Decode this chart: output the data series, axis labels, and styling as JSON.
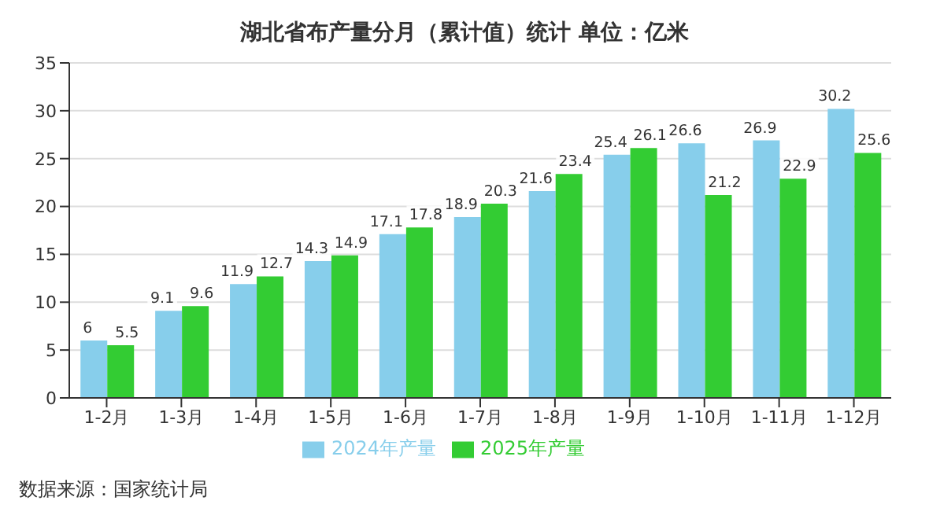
{
  "chart_data": {
    "type": "bar",
    "title": "湖北省布产量分月（累计值）统计 单位：亿米",
    "categories": [
      "1-2月",
      "1-3月",
      "1-4月",
      "1-5月",
      "1-6月",
      "1-7月",
      "1-8月",
      "1-9月",
      "1-10月",
      "1-11月",
      "1-12月"
    ],
    "series": [
      {
        "name": "2024年产量",
        "color": "#87ceeb",
        "values": [
          6,
          9.1,
          11.9,
          14.3,
          17.1,
          18.9,
          21.6,
          25.4,
          26.6,
          26.9,
          30.2
        ]
      },
      {
        "name": "2025年产量",
        "color": "#33cc33",
        "values": [
          5.5,
          9.6,
          12.7,
          14.9,
          17.8,
          20.3,
          23.4,
          26.1,
          21.2,
          22.9,
          25.6
        ]
      }
    ],
    "ylim": [
      0,
      35
    ],
    "yticks": [
      0,
      5,
      10,
      15,
      20,
      25,
      30,
      35
    ],
    "grid": "y",
    "legend": "bottom",
    "data_labels": true,
    "annotations": [
      "数据来源：国家统计局"
    ]
  }
}
